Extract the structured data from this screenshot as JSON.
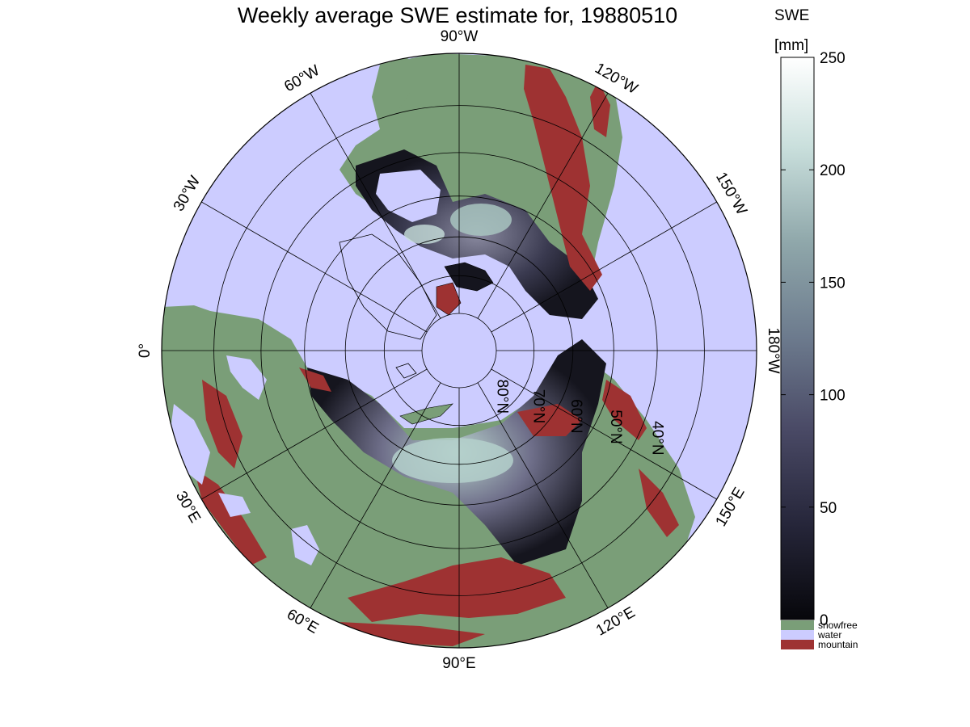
{
  "title": "Weekly average SWE estimate for, 19880510",
  "colorbar": {
    "label_line1": "SWE",
    "label_line2": "[mm]",
    "ticks": [
      0,
      50,
      100,
      150,
      200,
      250
    ],
    "range": [
      0,
      250
    ],
    "gradient": [
      "#07070b",
      "#26263a",
      "#4a4a66",
      "#6c7a8d",
      "#8fa7aa",
      "#c9dfdc",
      "#ffffff"
    ]
  },
  "legend": [
    {
      "label": "snowfree",
      "color": "#7a9e78"
    },
    {
      "label": "water",
      "color": "#ccccff"
    },
    {
      "label": "mountain",
      "color": "#9e3232"
    }
  ],
  "map": {
    "projection": "north polar stereographic",
    "ocean_color": "#ccccff",
    "land_color": "#7a9e78",
    "mountain_color": "#9e3232",
    "snow_dark_color": "#15151e",
    "longitude_labels": [
      {
        "text": "90°W",
        "lon": 0
      },
      {
        "text": "60°W",
        "lon": 30
      },
      {
        "text": "30°W",
        "lon": 60
      },
      {
        "text": "0°",
        "lon": 90
      },
      {
        "text": "30°E",
        "lon": 120
      },
      {
        "text": "60°E",
        "lon": 150
      },
      {
        "text": "90°E",
        "lon": 180
      },
      {
        "text": "120°E",
        "lon": 210
      },
      {
        "text": "150°E",
        "lon": 240
      },
      {
        "text": "180°W",
        "lon": 270
      },
      {
        "text": "150°W",
        "lon": 300
      },
      {
        "text": "120°W",
        "lon": 330
      }
    ],
    "latitude_labels": [
      "80°N",
      "70°N",
      "60°N",
      "50°N",
      "40°N"
    ],
    "latitude_circles": [
      80,
      70,
      60,
      50,
      40,
      30
    ]
  }
}
